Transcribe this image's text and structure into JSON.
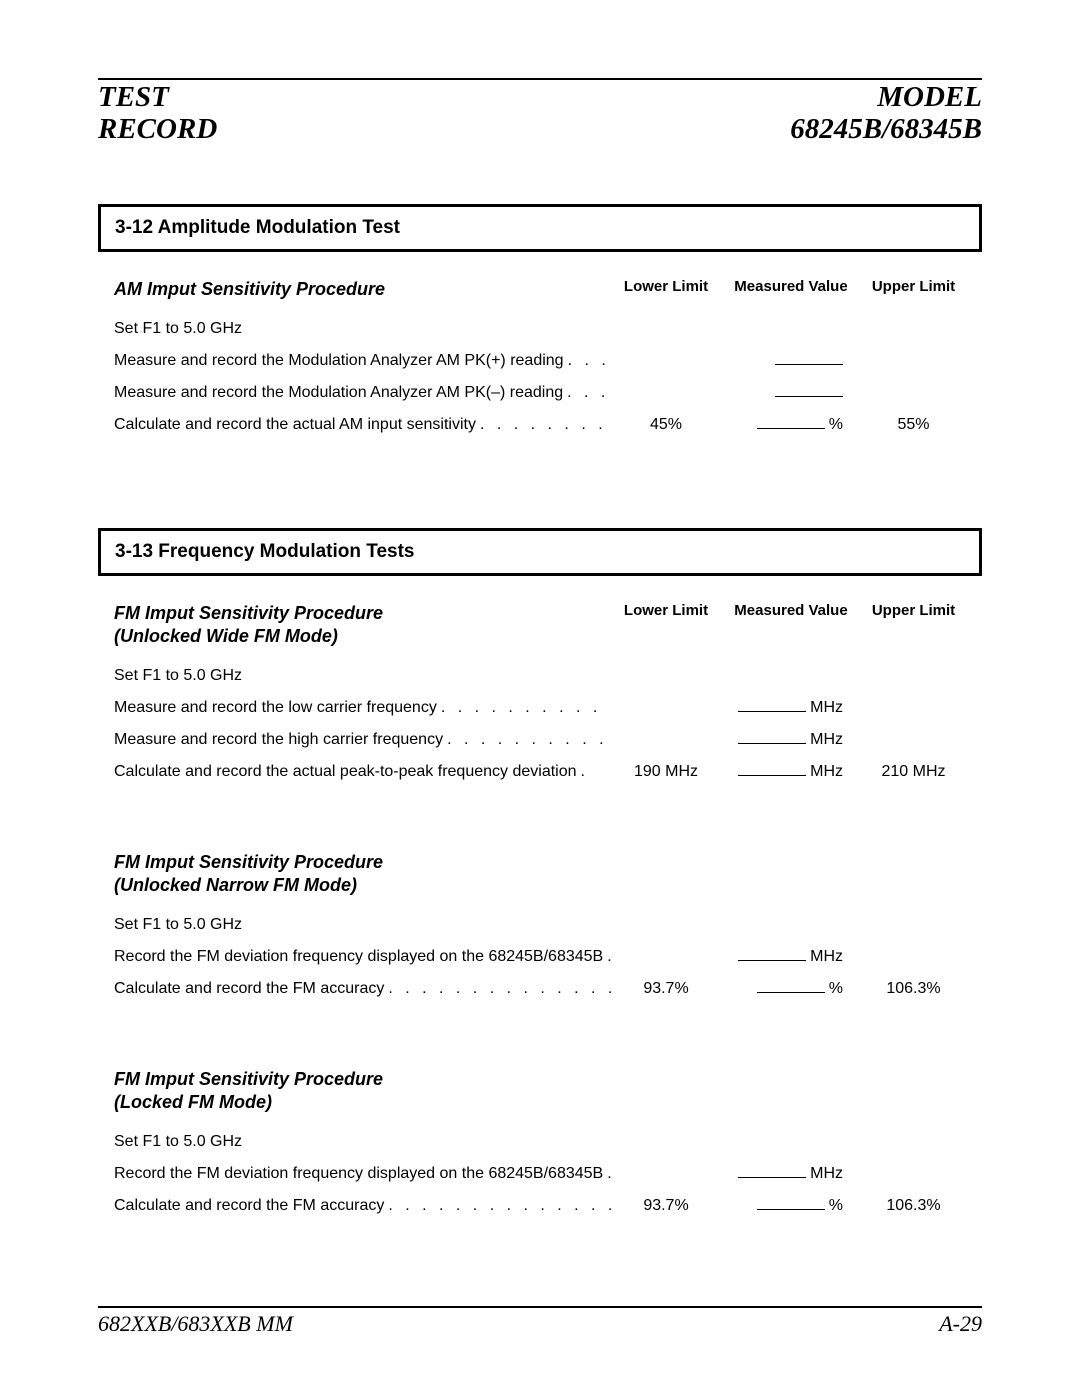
{
  "header": {
    "left_line1": "TEST",
    "left_line2": "RECORD",
    "right_line1": "MODEL",
    "right_line2": "68245B/68345B"
  },
  "columns": {
    "lower": "Lower Limit",
    "measured": "Measured Value",
    "upper": "Upper Limit"
  },
  "section1": {
    "title": "3-12 Amplitude Modulation Test",
    "proc_title": "AM Imput Sensitivity Procedure",
    "rows": {
      "set": "Set F1 to 5.0 GHz",
      "r1_label": "Measure and record  the Modulation Analyzer AM PK(+) reading",
      "r2_label": "Measure and record the Modulation Analyzer AM PK(–) reading",
      "r3_label": "Calculate and record the actual AM input sensitivity",
      "r3_lower": "45%",
      "r3_unit": "%",
      "r3_upper": "55%"
    }
  },
  "section2": {
    "title": "3-13 Frequency Modulation Tests",
    "procA": {
      "title_l1": "FM Imput Sensitivity Procedure",
      "title_l2": "(Unlocked Wide FM Mode)",
      "set": "Set F1 to 5.0 GHz",
      "r1_label": "Measure and record the low carrier frequency",
      "r1_unit": "MHz",
      "r2_label": "Measure and record the high carrier frequency",
      "r2_unit": "MHz",
      "r3_label": "Calculate and record the actual peak-to-peak frequency deviation",
      "r3_lower": "190 MHz",
      "r3_unit": "MHz",
      "r3_upper": "210 MHz"
    },
    "procB": {
      "title_l1": "FM Imput Sensitivity Procedure",
      "title_l2": "(Unlocked Narrow FM Mode)",
      "set": "Set F1 to 5.0 GHz",
      "r1_label": "Record the FM deviation frequency displayed on the 68245B/68345B",
      "r1_unit": "MHz",
      "r2_label": "Calculate and record the FM accuracy",
      "r2_lower": "93.7%",
      "r2_unit": "%",
      "r2_upper": "106.3%"
    },
    "procC": {
      "title_l1": "FM Imput Sensitivity Procedure",
      "title_l2": "(Locked FM Mode)",
      "set": "Set F1 to 5.0 GHz",
      "r1_label": "Record the FM deviation frequency displayed on the 68245B/68345B",
      "r1_unit": "MHz",
      "r2_label": "Calculate and record the FM accuracy",
      "r2_lower": "93.7%",
      "r2_unit": "%",
      "r2_upper": "106.3%"
    }
  },
  "footer": {
    "left": "682XXB/683XXB MM",
    "right": "A-29"
  },
  "dots_long": ". . . . . . . . . . . . . . . . . . . . . . . . . . .",
  "dots_med": ". . . . . . . . . .",
  "dots_short": ". . . . . . . ."
}
